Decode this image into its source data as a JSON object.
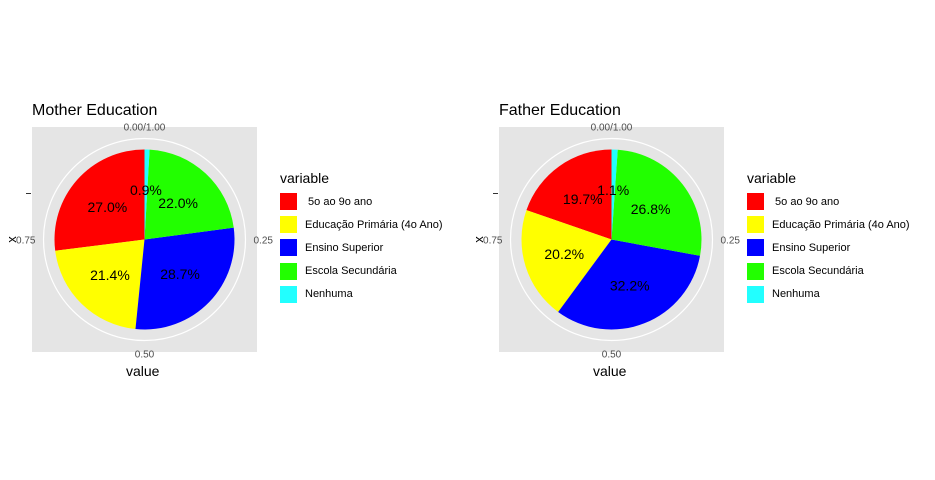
{
  "chart_data": [
    {
      "type": "pie",
      "title": "Mother Education",
      "xlabel": "value",
      "ylabel": "x",
      "theta_ticks": [
        "0.00/1.00",
        "0.25",
        "0.50",
        "0.75"
      ],
      "legend_title": "variable",
      "legend_placement": "right",
      "slices": [
        {
          "label": " 5o ao 9o ano",
          "value": 27.0,
          "text": "27.0%",
          "color": "#ff0000"
        },
        {
          "label": "Educação Primária (4o Ano)",
          "value": 21.4,
          "text": "21.4%",
          "color": "#ffff00"
        },
        {
          "label": "Ensino Superior",
          "value": 28.7,
          "text": "28.7%",
          "color": "#0000ff"
        },
        {
          "label": "Escola Secundária",
          "value": 22.0,
          "text": "22.0%",
          "color": "#22ff00"
        },
        {
          "label": "Nenhuma",
          "value": 0.9,
          "text": "0.9%",
          "color": "#22ffff"
        }
      ]
    },
    {
      "type": "pie",
      "title": "Father Education",
      "xlabel": "value",
      "ylabel": "x",
      "theta_ticks": [
        "0.00/1.00",
        "0.25",
        "0.50",
        "0.75"
      ],
      "legend_title": "variable",
      "legend_placement": "right",
      "slices": [
        {
          "label": " 5o ao 9o ano",
          "value": 19.7,
          "text": "19.7%",
          "color": "#ff0000"
        },
        {
          "label": "Educação Primária (4o Ano)",
          "value": 20.2,
          "text": "20.2%",
          "color": "#ffff00"
        },
        {
          "label": "Ensino Superior",
          "value": 32.2,
          "text": "32.2%",
          "color": "#0000ff"
        },
        {
          "label": "Escola Secundária",
          "value": 26.8,
          "text": "26.8%",
          "color": "#22ff00"
        },
        {
          "label": "Nenhuma",
          "value": 1.1,
          "text": "1.1%",
          "color": "#22ffff"
        }
      ]
    }
  ]
}
